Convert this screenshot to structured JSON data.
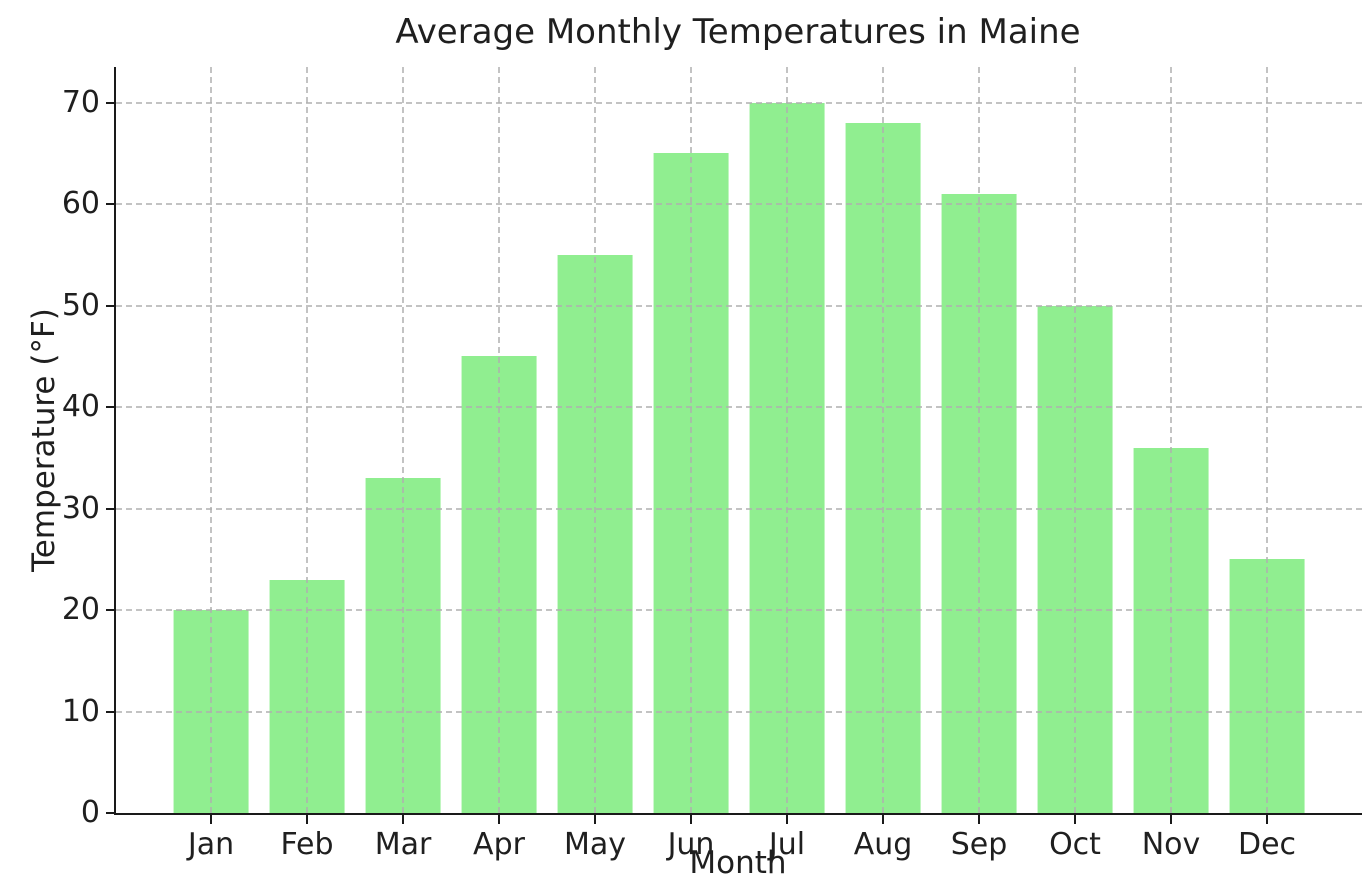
{
  "chart_data": {
    "type": "bar",
    "title": "Average Monthly Temperatures in Maine",
    "xlabel": "Month",
    "ylabel": "Temperature (°F)",
    "categories": [
      "Jan",
      "Feb",
      "Mar",
      "Apr",
      "May",
      "Jun",
      "Jul",
      "Aug",
      "Sep",
      "Oct",
      "Nov",
      "Dec"
    ],
    "values": [
      20,
      23,
      33,
      45,
      55,
      65,
      70,
      68,
      61,
      50,
      36,
      25
    ],
    "yticks": [
      0,
      10,
      20,
      30,
      40,
      50,
      60,
      70
    ],
    "ylim": [
      0,
      73.5
    ],
    "legend": "none",
    "grid": "both-dashed-above-bars",
    "colors": {
      "bar_fill": "#90EE90",
      "grid_line": "#b0b0b0",
      "axis_spine": "#1a1a1a",
      "text": "#1f1f1f",
      "background": "#ffffff"
    }
  }
}
